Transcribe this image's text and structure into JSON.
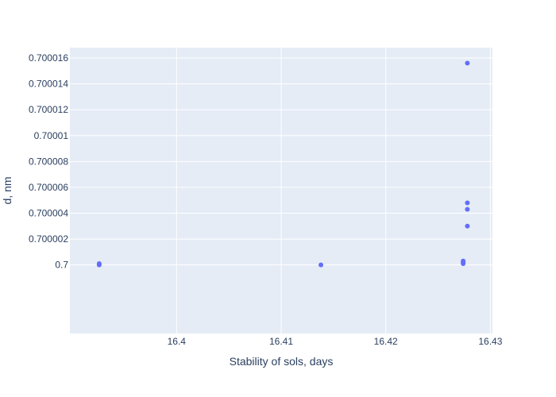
{
  "chart_data": {
    "type": "scatter",
    "title": "",
    "xlabel": "Stability of sols, days",
    "ylabel": "d, nm",
    "xlim": [
      16.3898,
      16.4302
    ],
    "ylim": [
      0.6999947,
      0.7000168
    ],
    "x_ticks": [
      {
        "value": 16.4,
        "label": "16.4"
      },
      {
        "value": 16.41,
        "label": "16.41"
      },
      {
        "value": 16.42,
        "label": "16.42"
      },
      {
        "value": 16.43,
        "label": "16.43"
      }
    ],
    "y_ticks": [
      {
        "value": 0.7,
        "label": "0.7"
      },
      {
        "value": 0.700002,
        "label": "0.700002"
      },
      {
        "value": 0.700004,
        "label": "0.700004"
      },
      {
        "value": 0.700006,
        "label": "0.700006"
      },
      {
        "value": 0.700008,
        "label": "0.700008"
      },
      {
        "value": 0.70001,
        "label": "0.70001"
      },
      {
        "value": 0.700012,
        "label": "0.700012"
      },
      {
        "value": 0.700014,
        "label": "0.700014"
      },
      {
        "value": 0.700016,
        "label": "0.700016"
      }
    ],
    "grid": true,
    "series": [
      {
        "color": "#636efa",
        "points": [
          {
            "x": 16.3926,
            "y": 0.7
          },
          {
            "x": 16.3926,
            "y": 0.7000001
          },
          {
            "x": 16.4138,
            "y": 0.7
          },
          {
            "x": 16.4274,
            "y": 0.7000001
          },
          {
            "x": 16.4274,
            "y": 0.7000002
          },
          {
            "x": 16.4274,
            "y": 0.7000003
          },
          {
            "x": 16.4278,
            "y": 0.7000043
          },
          {
            "x": 16.4278,
            "y": 0.7000048
          },
          {
            "x": 16.4278,
            "y": 0.700003
          },
          {
            "x": 16.4278,
            "y": 0.7000156
          }
        ]
      }
    ],
    "colors": {
      "plot_background": "#e5ecf6",
      "grid": "#ffffff",
      "marker": "#636efa",
      "text": "#2a3f5f"
    }
  }
}
